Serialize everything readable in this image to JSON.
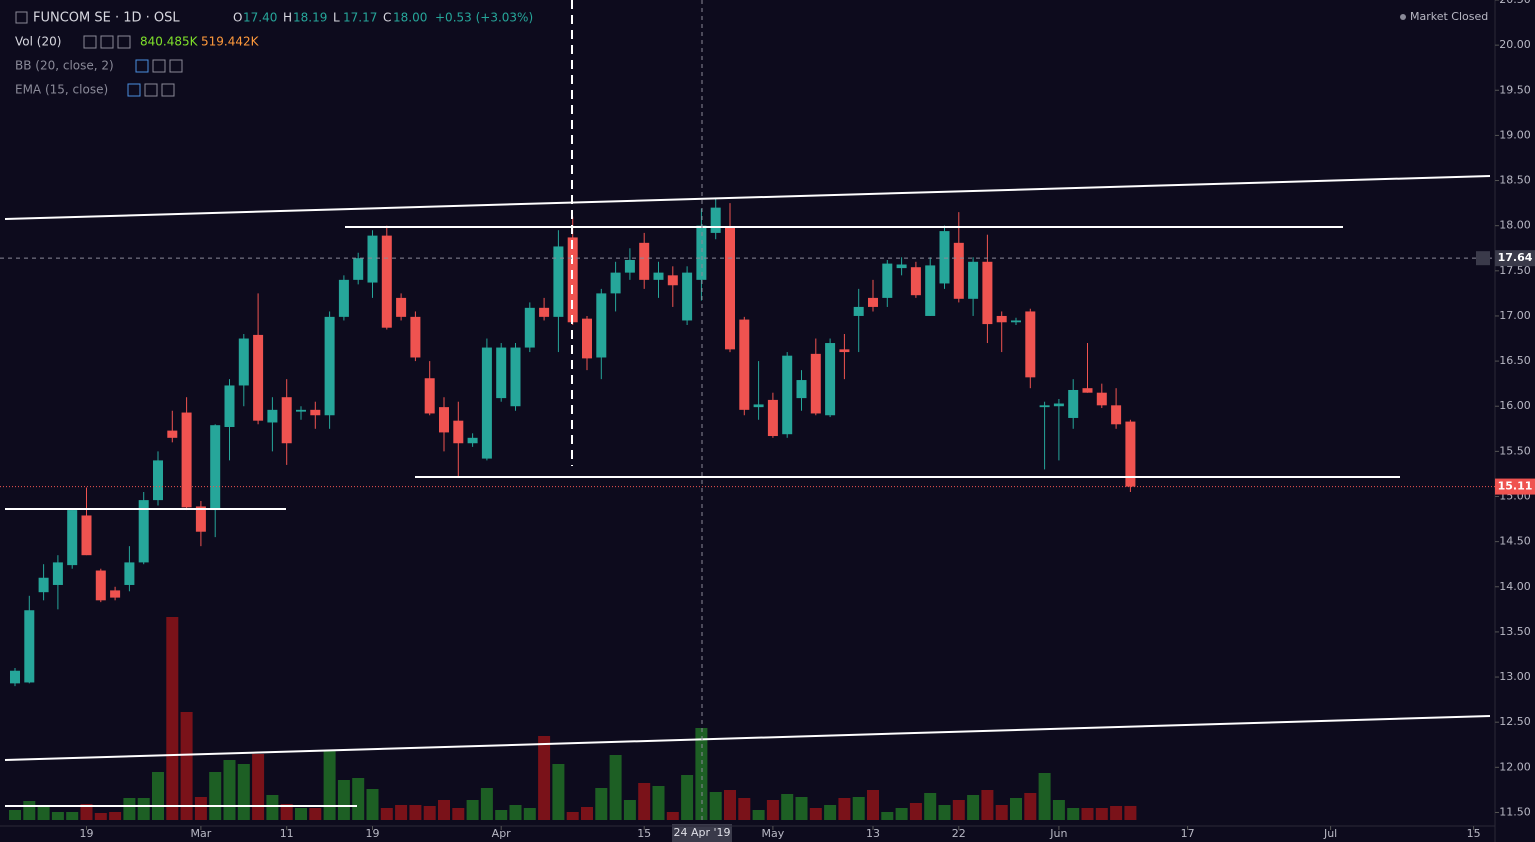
{
  "chart_data": {
    "type": "candlestick",
    "title": "FUNCOM SE · 1D · OSL",
    "ohlc_legend": [
      {
        "label": "O",
        "value": "17.40"
      },
      {
        "label": "H",
        "value": "18.19"
      },
      {
        "label": "L",
        "value": "17.17"
      },
      {
        "label": "C",
        "value": "18.00"
      }
    ],
    "change": "+0.53 (+3.03%)",
    "volume_legend": {
      "name": "Vol (20)",
      "ma": "840.485K",
      "last": "519.442K"
    },
    "indicators": [
      "BB (20, close, 2)",
      "EMA (15, close)"
    ],
    "status": "Market Closed",
    "crosshair_date": "24 Apr '19",
    "crosshair_price": 17.64,
    "last_price": 15.11,
    "up_color": "#26a69a",
    "down_color": "#ef5350",
    "volume_up_color": "#1d5f24",
    "volume_down_color": "#7a1219",
    "categories": [
      null,
      null,
      null,
      null,
      null,
      "19",
      null,
      null,
      null,
      null,
      null,
      null,
      null,
      "Mar",
      null,
      null,
      null,
      null,
      null,
      "11",
      null,
      null,
      null,
      null,
      null,
      "19",
      null,
      null,
      null,
      null,
      null,
      null,
      null,
      null,
      "Apr",
      null,
      null,
      null,
      null,
      null,
      null,
      null,
      null,
      null,
      "15",
      null,
      null,
      null,
      null,
      null,
      null,
      null,
      null,
      "May",
      null,
      null,
      null,
      null,
      null,
      null,
      "13",
      null,
      null,
      null,
      null,
      null,
      "22",
      null,
      null,
      null,
      null,
      null,
      null,
      "Jun",
      null,
      null,
      null,
      null,
      null,
      null,
      null,
      null,
      "17",
      null,
      null,
      null,
      null,
      null,
      null,
      null,
      null,
      null,
      "Jul",
      null,
      null,
      null,
      null,
      null,
      null,
      null,
      null,
      null,
      "15",
      null
    ],
    "open": [
      12.93,
      12.94,
      13.94,
      14.02,
      14.24,
      14.79,
      14.18,
      13.96,
      14.02,
      14.27,
      14.96,
      15.73,
      15.93,
      14.89,
      14.85,
      15.77,
      16.23,
      16.79,
      15.82,
      16.1,
      15.94,
      15.96,
      15.9,
      16.99,
      17.4,
      17.37,
      17.89,
      17.2,
      16.99,
      16.31,
      15.99,
      15.84,
      15.59,
      15.42,
      16.09,
      16.0,
      16.65,
      17.09,
      16.99,
      17.87,
      16.97,
      16.54,
      17.25,
      17.48,
      17.81,
      17.4,
      17.45,
      16.95,
      17.4,
      17.92,
      17.99,
      16.96,
      15.99,
      16.07,
      15.69,
      16.09,
      16.58,
      15.9,
      16.63,
      17.0,
      17.2,
      17.2,
      17.53,
      17.54,
      17.0,
      17.36,
      17.81,
      17.19,
      17.6,
      17.0,
      16.93,
      17.05,
      15.99,
      16.0,
      15.87,
      16.2,
      16.15,
      16.01,
      15.83,
      null,
      null,
      null,
      null,
      null,
      null,
      null,
      null,
      null,
      null,
      null,
      null,
      null,
      null,
      null,
      null,
      null,
      null,
      null,
      null,
      null,
      null,
      null,
      null,
      null
    ],
    "high": [
      13.1,
      13.9,
      14.25,
      14.35,
      14.87,
      15.1,
      14.2,
      14.0,
      14.45,
      15.05,
      15.5,
      15.95,
      16.1,
      14.95,
      15.8,
      16.3,
      16.8,
      17.25,
      16.1,
      16.3,
      16.0,
      16.05,
      17.05,
      17.45,
      17.7,
      17.95,
      18.0,
      17.25,
      17.05,
      16.5,
      16.1,
      16.05,
      15.7,
      16.75,
      16.7,
      16.7,
      17.15,
      17.2,
      17.95,
      18.1,
      17.0,
      17.3,
      17.6,
      17.75,
      17.92,
      17.6,
      17.55,
      17.55,
      18.19,
      18.3,
      18.25,
      16.99,
      16.5,
      16.15,
      16.6,
      16.4,
      16.75,
      16.75,
      16.8,
      17.3,
      17.4,
      17.62,
      17.65,
      17.6,
      17.65,
      18.0,
      18.15,
      17.65,
      17.9,
      17.05,
      16.98,
      17.08,
      16.05,
      16.08,
      16.3,
      16.7,
      16.25,
      16.2,
      15.85,
      null,
      null,
      null,
      null,
      null,
      null,
      null,
      null,
      null,
      null,
      null,
      null,
      null,
      null,
      null,
      null,
      null,
      null,
      null,
      null,
      null,
      null,
      null,
      null,
      null
    ],
    "low": [
      12.9,
      12.93,
      13.85,
      13.75,
      14.2,
      14.35,
      13.83,
      13.85,
      13.95,
      14.25,
      14.9,
      15.6,
      14.85,
      14.45,
      14.55,
      15.4,
      16.0,
      15.8,
      15.5,
      15.35,
      15.85,
      15.75,
      15.75,
      16.95,
      17.35,
      17.2,
      16.85,
      16.95,
      16.5,
      15.9,
      15.5,
      15.22,
      15.55,
      15.4,
      16.05,
      15.95,
      16.6,
      16.95,
      16.6,
      16.9,
      16.4,
      16.3,
      17.05,
      17.4,
      17.3,
      17.2,
      17.1,
      16.9,
      17.17,
      17.85,
      16.6,
      15.9,
      15.85,
      15.65,
      15.65,
      15.95,
      15.9,
      15.88,
      16.3,
      16.6,
      17.05,
      17.1,
      17.45,
      17.2,
      17.0,
      17.3,
      17.15,
      17.0,
      16.7,
      16.6,
      16.9,
      16.2,
      15.3,
      15.4,
      15.75,
      16.15,
      15.98,
      15.75,
      15.05,
      null,
      null,
      null,
      null,
      null,
      null,
      null,
      null,
      null,
      null,
      null,
      null,
      null,
      null,
      null,
      null,
      null,
      null,
      null,
      null,
      null,
      null,
      null,
      null,
      null
    ],
    "close": [
      13.07,
      13.74,
      14.1,
      14.27,
      14.85,
      14.35,
      13.85,
      13.88,
      14.27,
      14.96,
      15.4,
      15.65,
      14.88,
      14.61,
      15.79,
      16.23,
      16.75,
      15.84,
      15.96,
      15.59,
      15.96,
      15.9,
      16.99,
      17.4,
      17.64,
      17.89,
      16.87,
      16.99,
      16.54,
      15.92,
      15.71,
      15.59,
      15.65,
      16.65,
      16.65,
      16.65,
      17.09,
      16.99,
      17.77,
      16.93,
      16.53,
      17.25,
      17.48,
      17.62,
      17.4,
      17.48,
      17.34,
      17.48,
      18.0,
      18.2,
      16.63,
      15.96,
      16.02,
      15.67,
      16.56,
      16.29,
      15.92,
      16.7,
      16.6,
      17.1,
      17.1,
      17.58,
      17.57,
      17.23,
      17.56,
      17.94,
      17.19,
      17.6,
      16.91,
      16.93,
      16.95,
      16.32,
      16.01,
      16.03,
      16.18,
      16.15,
      16.01,
      15.8,
      15.11,
      null,
      null,
      null,
      null,
      null,
      null,
      null,
      null,
      null,
      null,
      null,
      null,
      null,
      null,
      null,
      null,
      null,
      null,
      null,
      null,
      null,
      null,
      null,
      null,
      null
    ],
    "volume": [
      370000,
      703000,
      481000,
      296000,
      296000,
      592000,
      259000,
      296000,
      814000,
      814000,
      1776000,
      7511000,
      3996000,
      851000,
      1776000,
      2220000,
      2072000,
      2442000,
      925000,
      592000,
      444000,
      444000,
      2553000,
      1480000,
      1554000,
      1147000,
      444000,
      555000,
      555000,
      518000,
      740000,
      444000,
      740000,
      1184000,
      370000,
      555000,
      444000,
      3108000,
      2072000,
      296000,
      481000,
      1184000,
      2405000,
      740000,
      1369000,
      1258000,
      296000,
      1665000,
      3404000,
      1036000,
      1110000,
      814000,
      370000,
      740000,
      962000,
      851000,
      444000,
      555000,
      814000,
      851000,
      1110000,
      296000,
      444000,
      629000,
      999000,
      555000,
      740000,
      925000,
      1110000,
      555000,
      814000,
      999000,
      1739000,
      740000,
      444000,
      444000,
      444000,
      518000,
      519442,
      null,
      null,
      null,
      null,
      null,
      null,
      null,
      null,
      null,
      null,
      null,
      null,
      null,
      null,
      null,
      null,
      null,
      null,
      null,
      null,
      null,
      null,
      null,
      null,
      null
    ],
    "ylim": [
      11.35,
      20.5
    ],
    "volume_ylim": [
      0,
      30340000
    ],
    "yticks": [
      {
        "value": 11.5,
        "label": "11.50"
      },
      {
        "value": 12,
        "label": "12.00"
      },
      {
        "value": 12.5,
        "label": "12.50"
      },
      {
        "value": 13,
        "label": "13.00"
      },
      {
        "value": 13.5,
        "label": "13.50"
      },
      {
        "value": 14,
        "label": "14.00"
      },
      {
        "value": 14.5,
        "label": "14.50"
      },
      {
        "value": 15,
        "label": "15.00"
      },
      {
        "value": 15.5,
        "label": "15.50"
      },
      {
        "value": 16,
        "label": "16.00"
      },
      {
        "value": 16.5,
        "label": "16.50"
      },
      {
        "value": 17,
        "label": "17.00"
      },
      {
        "value": 17.5,
        "label": "17.50"
      },
      {
        "value": 18,
        "label": "18.00"
      },
      {
        "value": 18.5,
        "label": "18.50"
      },
      {
        "value": 19,
        "label": "19.00"
      },
      {
        "value": 19.5,
        "label": "19.50"
      },
      {
        "value": 20,
        "label": "20.00"
      },
      {
        "value": 20.5,
        "label": "20.50"
      }
    ]
  }
}
